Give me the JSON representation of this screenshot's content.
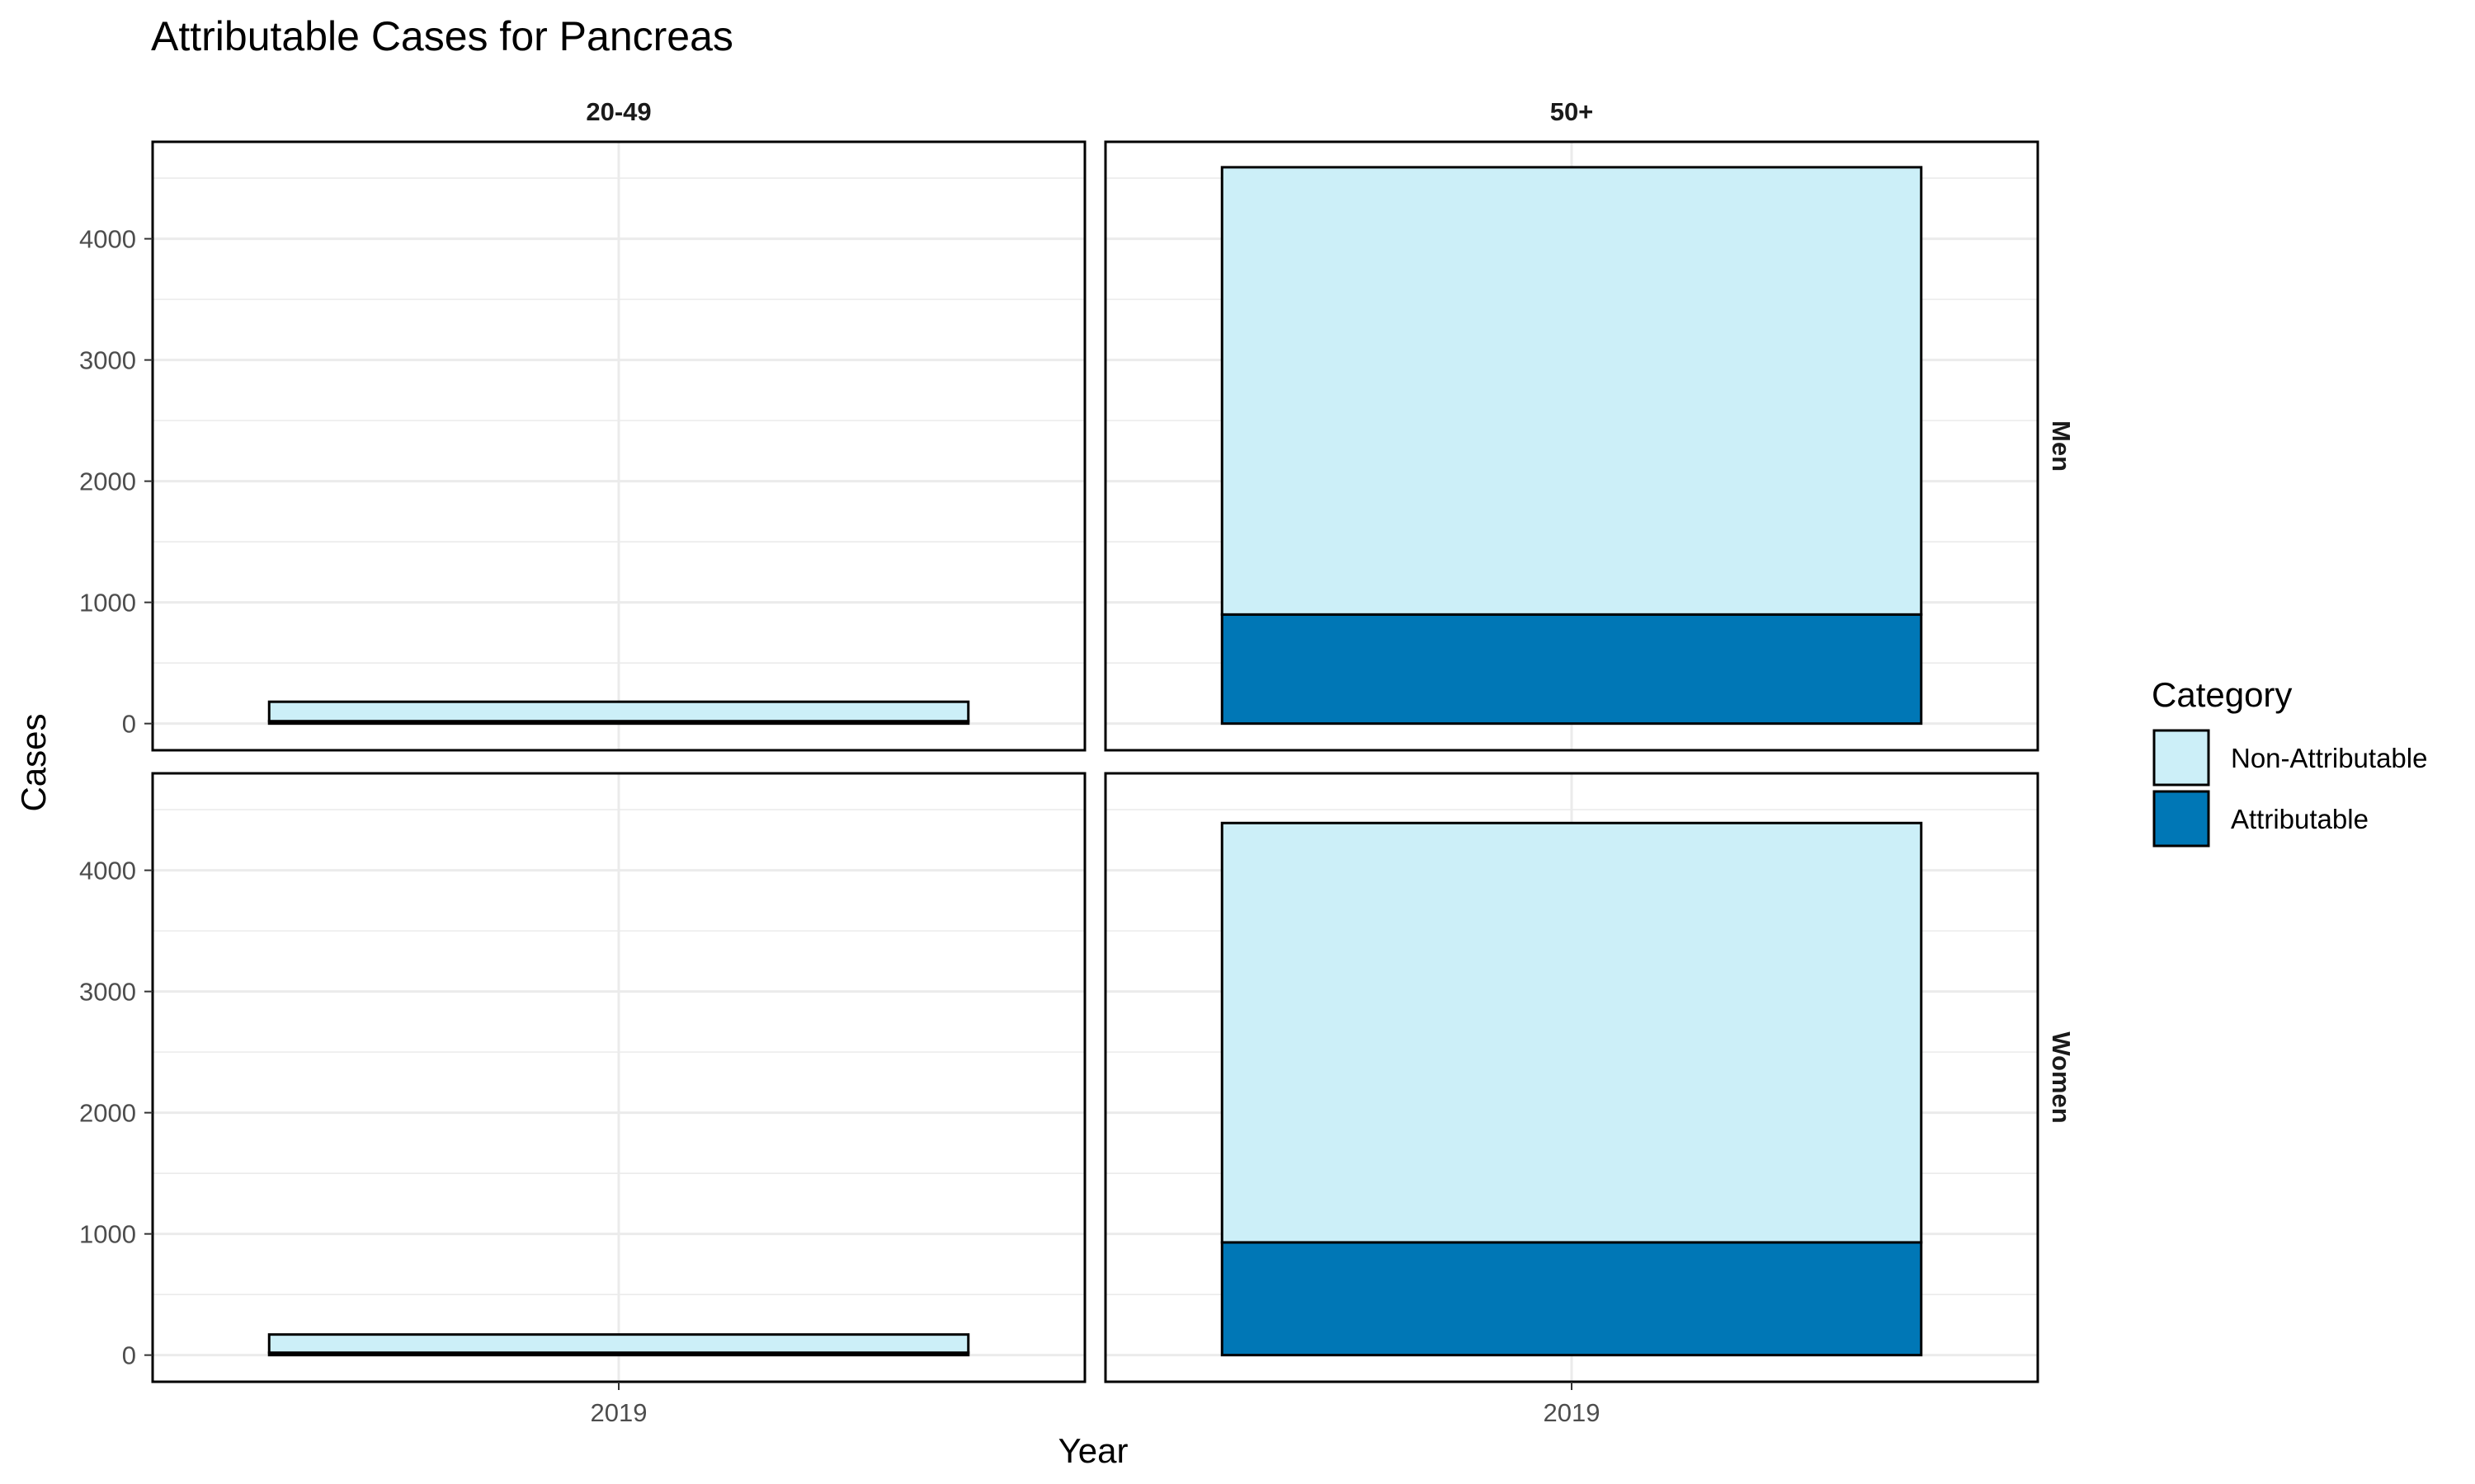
{
  "chart_data": {
    "type": "bar",
    "stacked": true,
    "title": "Attributable Cases for Pancreas",
    "xlabel": "Year",
    "ylabel": "Cases",
    "ylim": [
      -220,
      4800
    ],
    "yticks": [
      0,
      1000,
      2000,
      3000,
      4000
    ],
    "grid": true,
    "facet_columns": [
      "20-49",
      "50+"
    ],
    "facet_rows": [
      "Men",
      "Women"
    ],
    "categories": [
      "2019"
    ],
    "legend": {
      "title": "Category",
      "position": "right",
      "entries": [
        {
          "name": "Non-Attributable",
          "color": "#cceff8"
        },
        {
          "name": "Attributable",
          "color": "#0077b6"
        }
      ]
    },
    "panels": [
      {
        "row": "Men",
        "col": "20-49",
        "series": [
          {
            "name": "Attributable",
            "values": [
              20
            ]
          },
          {
            "name": "Non-Attributable",
            "values": [
              160
            ]
          }
        ]
      },
      {
        "row": "Men",
        "col": "50+",
        "series": [
          {
            "name": "Attributable",
            "values": [
              900
            ]
          },
          {
            "name": "Non-Attributable",
            "values": [
              3690
            ]
          }
        ]
      },
      {
        "row": "Women",
        "col": "20-49",
        "series": [
          {
            "name": "Attributable",
            "values": [
              20
            ]
          },
          {
            "name": "Non-Attributable",
            "values": [
              150
            ]
          }
        ]
      },
      {
        "row": "Women",
        "col": "50+",
        "series": [
          {
            "name": "Attributable",
            "values": [
              930
            ]
          },
          {
            "name": "Non-Attributable",
            "values": [
              3460
            ]
          }
        ]
      }
    ]
  }
}
